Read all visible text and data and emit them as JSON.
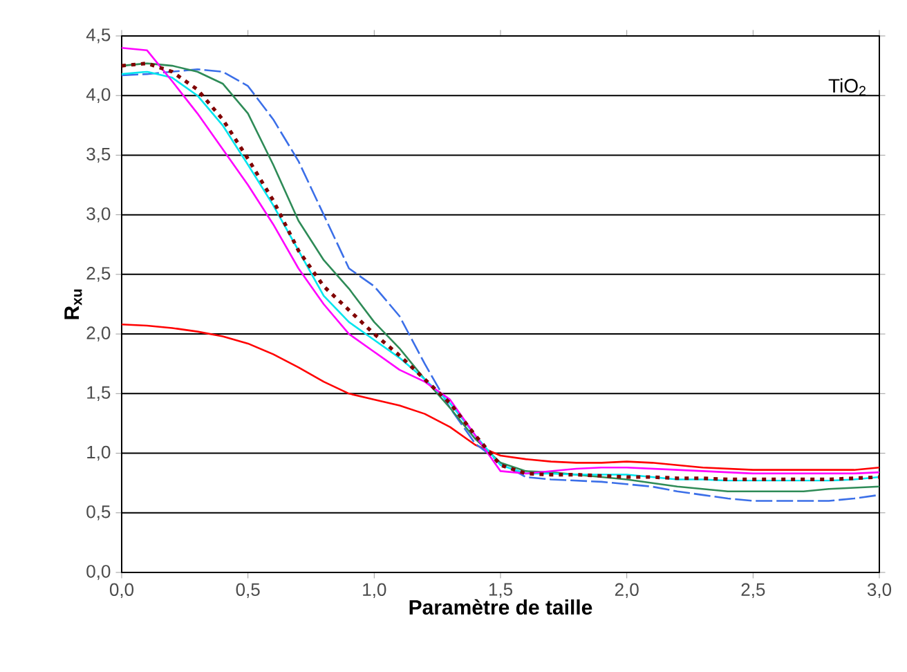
{
  "chart_data": {
    "type": "line",
    "xlabel": "Paramètre de taille",
    "ylabel": "R$_{xu}$",
    "annotations": [
      "TiO$_{2}$"
    ],
    "x": [
      0,
      0.1,
      0.2,
      0.3,
      0.4,
      0.5,
      0.6,
      0.7,
      0.8,
      0.9,
      1.0,
      1.1,
      1.2,
      1.3,
      1.4,
      1.5,
      1.6,
      1.7,
      1.8,
      1.9,
      2.0,
      2.1,
      2.2,
      2.3,
      2.4,
      2.5,
      2.6,
      2.7,
      2.8,
      2.9,
      3.0
    ],
    "xlim": [
      0,
      3
    ],
    "ylim": [
      0,
      4.5
    ],
    "xticks": [
      {
        "value": 0,
        "label": "0,0"
      },
      {
        "value": 0.5,
        "label": "0,5"
      },
      {
        "value": 1,
        "label": "1,0"
      },
      {
        "value": 1.5,
        "label": "1,5"
      },
      {
        "value": 2,
        "label": "2,0"
      },
      {
        "value": 2.5,
        "label": "2,5"
      },
      {
        "value": 3,
        "label": "3,0"
      }
    ],
    "yticks": [
      {
        "value": 0,
        "label": "0,0"
      },
      {
        "value": 0.5,
        "label": "0,5"
      },
      {
        "value": 1,
        "label": "1,0"
      },
      {
        "value": 1.5,
        "label": "1,5"
      },
      {
        "value": 2,
        "label": "2,0"
      },
      {
        "value": 2.5,
        "label": "2,5"
      },
      {
        "value": 3,
        "label": "3,0"
      },
      {
        "value": 3.5,
        "label": "3,5"
      },
      {
        "value": 4,
        "label": "4,0"
      },
      {
        "value": 4.5,
        "label": "4,5"
      }
    ],
    "grid": "y",
    "series": [
      {
        "color": "#ff0000",
        "line_style": "solid",
        "values": [
          2.08,
          2.07,
          2.05,
          2.02,
          1.98,
          1.92,
          1.83,
          1.72,
          1.6,
          1.5,
          1.45,
          1.4,
          1.33,
          1.22,
          1.07,
          0.98,
          0.95,
          0.93,
          0.92,
          0.92,
          0.93,
          0.92,
          0.9,
          0.88,
          0.87,
          0.86,
          0.86,
          0.86,
          0.86,
          0.86,
          0.88
        ]
      },
      {
        "color": "#3b6fe8",
        "line_style": "dashed",
        "values": [
          4.17,
          4.18,
          4.2,
          4.22,
          4.2,
          4.08,
          3.8,
          3.45,
          3.0,
          2.55,
          2.4,
          2.15,
          1.75,
          1.38,
          1.08,
          0.92,
          0.8,
          0.78,
          0.77,
          0.76,
          0.74,
          0.72,
          0.68,
          0.65,
          0.62,
          0.6,
          0.6,
          0.6,
          0.6,
          0.62,
          0.65
        ]
      },
      {
        "color": "#2e8b57",
        "line_style": "solid",
        "values": [
          4.25,
          4.27,
          4.25,
          4.2,
          4.1,
          3.85,
          3.42,
          2.95,
          2.62,
          2.38,
          2.1,
          1.88,
          1.62,
          1.38,
          1.12,
          0.92,
          0.85,
          0.84,
          0.82,
          0.8,
          0.78,
          0.75,
          0.72,
          0.7,
          0.68,
          0.68,
          0.68,
          0.68,
          0.7,
          0.71,
          0.72
        ]
      },
      {
        "color": "#00e5ee",
        "line_style": "solid",
        "values": [
          4.18,
          4.2,
          4.15,
          4.0,
          3.75,
          3.42,
          3.08,
          2.7,
          2.32,
          2.1,
          1.95,
          1.8,
          1.62,
          1.42,
          1.15,
          0.9,
          0.83,
          0.83,
          0.82,
          0.82,
          0.82,
          0.8,
          0.78,
          0.78,
          0.77,
          0.77,
          0.77,
          0.77,
          0.77,
          0.78,
          0.8
        ]
      },
      {
        "color": "#ff00ff",
        "line_style": "solid",
        "values": [
          4.4,
          4.38,
          4.12,
          3.85,
          3.55,
          3.25,
          2.92,
          2.55,
          2.25,
          2.0,
          1.85,
          1.7,
          1.6,
          1.45,
          1.15,
          0.85,
          0.83,
          0.85,
          0.87,
          0.88,
          0.88,
          0.87,
          0.86,
          0.85,
          0.84,
          0.83,
          0.83,
          0.83,
          0.83,
          0.83,
          0.84
        ]
      },
      {
        "color": "#800000",
        "line_style": "dotted",
        "values": [
          4.25,
          4.27,
          4.2,
          4.05,
          3.8,
          3.47,
          3.12,
          2.7,
          2.4,
          2.2,
          2.0,
          1.82,
          1.62,
          1.42,
          1.15,
          0.9,
          0.83,
          0.82,
          0.82,
          0.81,
          0.8,
          0.8,
          0.79,
          0.79,
          0.78,
          0.78,
          0.78,
          0.78,
          0.78,
          0.79,
          0.8
        ]
      }
    ]
  }
}
